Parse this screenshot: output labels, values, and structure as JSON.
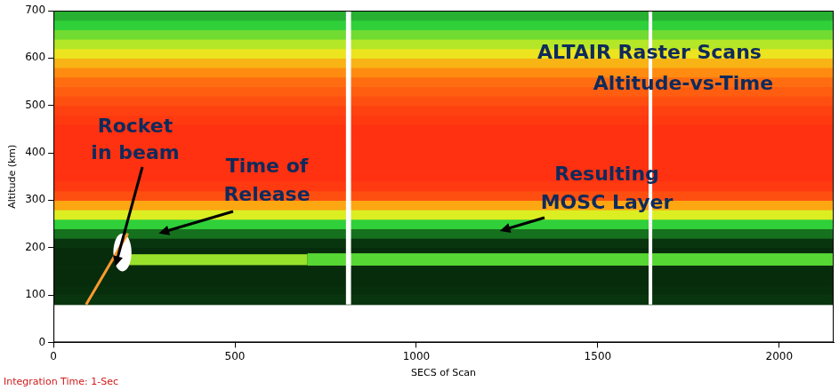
{
  "chart_data": {
    "type": "heatmap",
    "title": [
      "ALTAIR Raster Scans",
      "Altitude-vs-Time"
    ],
    "xlabel": "SECS of Scan",
    "ylabel": "Altitude (km)",
    "note": "Integration Time: 1-Sec",
    "xlim": [
      0,
      2150
    ],
    "xticks": [
      0,
      500,
      1000,
      1500,
      2000
    ],
    "ylim": [
      0,
      700
    ],
    "yticks": [
      0,
      100,
      200,
      300,
      400,
      500,
      600,
      700
    ],
    "grid": false,
    "time_range": [
      0,
      2150
    ],
    "altitude_bins": [
      80,
      100,
      120,
      140,
      160,
      180,
      200,
      220,
      240,
      260,
      280,
      300,
      320,
      340,
      360,
      380,
      400,
      420,
      440,
      460,
      480,
      500,
      520,
      540,
      560,
      580,
      600,
      620,
      640,
      660,
      680,
      700
    ],
    "intensity": [
      0.18,
      0.16,
      0.15,
      0.15,
      0.15,
      0.15,
      0.18,
      0.3,
      0.42,
      0.55,
      0.68,
      0.8,
      0.83,
      0.84,
      0.84,
      0.84,
      0.84,
      0.84,
      0.84,
      0.83,
      0.82,
      0.8,
      0.78,
      0.76,
      0.72,
      0.66,
      0.58,
      0.52,
      0.47,
      0.42,
      0.38
    ],
    "colorscale": [
      [
        0,
        "#000000"
      ],
      [
        0.25,
        "#0b4a12"
      ],
      [
        0.42,
        "#2fd03a"
      ],
      [
        0.56,
        "#e8f020"
      ],
      [
        0.7,
        "#ff9a10"
      ],
      [
        0.85,
        "#ff2a10"
      ],
      [
        1,
        "#ffffff"
      ]
    ],
    "gaps": [
      [
        806,
        820
      ],
      [
        1640,
        1650
      ]
    ],
    "layers": [
      {
        "x": [
          205,
          700
        ],
        "y": [
          163,
          186
        ],
        "intensity": 0.5
      },
      {
        "x": [
          700,
          2150
        ],
        "y": [
          162,
          188
        ],
        "intensity": 0.45
      }
    ],
    "release": {
      "x": [
        165,
        215
      ],
      "y": [
        150,
        230
      ],
      "intensity": 1
    },
    "rocket": {
      "x": [
        90,
        205
      ],
      "y": [
        80,
        230
      ],
      "color": "#ff9a30"
    },
    "annotations": [
      {
        "text": [
          "Rocket",
          "in beam"
        ],
        "point": [
          170,
          160
        ]
      },
      {
        "text": [
          "Time of",
          "Release"
        ],
        "point": [
          290,
          230
        ]
      },
      {
        "text": [
          "Resulting",
          "MOSC Layer"
        ],
        "point": [
          1230,
          235
        ]
      }
    ]
  }
}
